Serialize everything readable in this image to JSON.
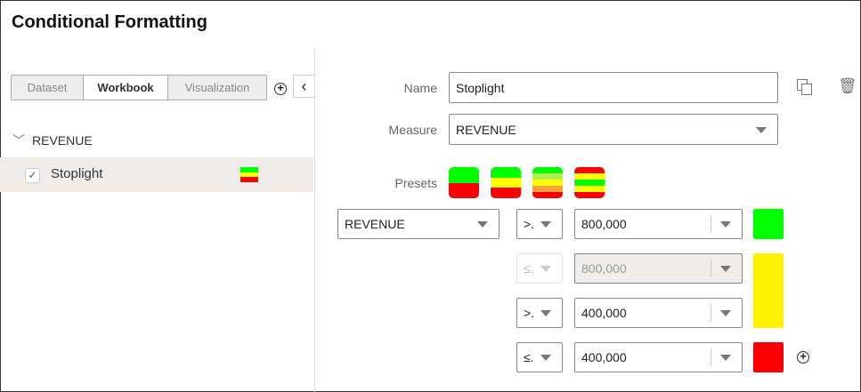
{
  "title": "Conditional Formatting",
  "scope_tabs": [
    {
      "label": "Dataset",
      "active": false
    },
    {
      "label": "Workbook",
      "active": true
    },
    {
      "label": "Visualization",
      "active": false
    }
  ],
  "tree": {
    "group": "REVENUE",
    "item": {
      "label": "Stoplight",
      "checked": true,
      "colors": [
        "#00ff00",
        "#ffff00",
        "#ff0000"
      ]
    }
  },
  "form": {
    "name_label": "Name",
    "name_value": "Stoplight",
    "measure_label": "Measure",
    "measure_value": "REVENUE",
    "presets_label": "Presets",
    "presets": [
      [
        "#00ff00",
        "#ff0000"
      ],
      [
        "#00ff00",
        "#ffff00",
        "#ff0000"
      ],
      [
        "#00ff00",
        "#b0f050",
        "#ffff00",
        "#ffa040",
        "#ff0000"
      ],
      [
        "#ff0000",
        "#ffff00",
        "#00ff00",
        "#ffff00",
        "#ff0000"
      ]
    ]
  },
  "rules": {
    "measure": "REVENUE",
    "rows": [
      {
        "op": ">.",
        "value": "800,000",
        "disabled": false
      },
      {
        "op": "≤.",
        "value": "800,000",
        "disabled": true
      },
      {
        "op": ">.",
        "value": "400,000",
        "disabled": false
      },
      {
        "op": "≤.",
        "value": "400,000",
        "disabled": false
      }
    ],
    "colors": {
      "green": "#00ff00",
      "yellow": "#fff200",
      "red": "#ff0000"
    }
  }
}
